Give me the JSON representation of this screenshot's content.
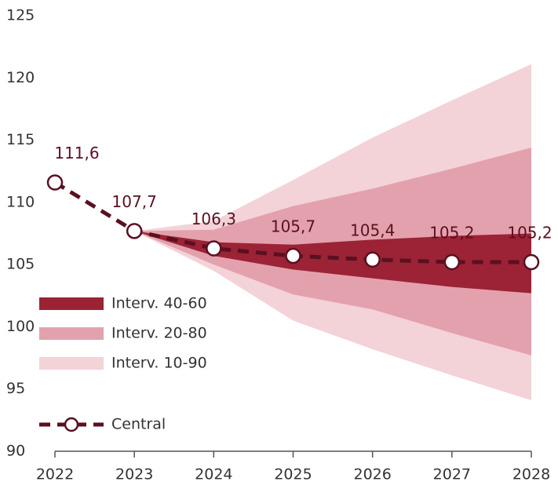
{
  "chart_data": {
    "type": "fan",
    "x": [
      2022,
      2023,
      2024,
      2025,
      2026,
      2027,
      2028
    ],
    "xlim": [
      2022,
      2028
    ],
    "xticks": [
      2022,
      2023,
      2024,
      2025,
      2026,
      2027,
      2028
    ],
    "ylim": [
      90,
      125
    ],
    "yticks": [
      90,
      95,
      100,
      105,
      110,
      115,
      120,
      125
    ],
    "grid": false,
    "legend": "bottom-left",
    "bands": [
      {
        "name": "Interv. 10-90",
        "color": "#f3d2d8",
        "lower": [
          null,
          107.7,
          104.5,
          100.5,
          98.2,
          96.1,
          94.1
        ],
        "upper": [
          null,
          107.7,
          108.5,
          111.8,
          115.2,
          118.2,
          121.1
        ]
      },
      {
        "name": "Interv. 20-80",
        "color": "#e3a1ad",
        "lower": [
          null,
          107.7,
          105.0,
          102.6,
          101.4,
          99.5,
          97.7
        ],
        "upper": [
          null,
          107.7,
          107.8,
          109.7,
          111.1,
          112.7,
          114.4
        ]
      },
      {
        "name": "Interv. 40-60",
        "color": "#9b2335",
        "lower": [
          null,
          107.7,
          105.7,
          104.6,
          103.9,
          103.2,
          102.7
        ],
        "upper": [
          null,
          107.7,
          106.8,
          106.6,
          107.0,
          107.3,
          107.5
        ]
      }
    ],
    "series": [
      {
        "name": "Central",
        "color": "#5a1020",
        "values": [
          111.6,
          107.7,
          106.3,
          105.7,
          105.4,
          105.2,
          105.2
        ],
        "value_labels": [
          "111,6",
          "107,7",
          "106,3",
          "105,7",
          "105,4",
          "105,2",
          "105,2"
        ]
      }
    ]
  }
}
